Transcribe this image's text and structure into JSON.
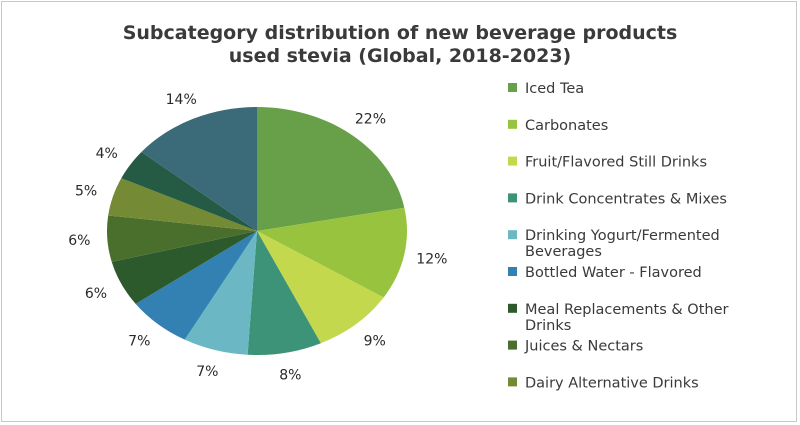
{
  "chart_data": {
    "type": "pie",
    "title": [
      "Subcategory distribution of new beverage products",
      "used stevia (Global, 2018-2023)"
    ],
    "slices": [
      {
        "label": "Iced Tea",
        "value": 22,
        "display": "22%",
        "color": "#67a048"
      },
      {
        "label": "Carbonates",
        "value": 12,
        "display": "12%",
        "color": "#98c33f"
      },
      {
        "label": "Fruit/Flavored Still Drinks",
        "value": 9,
        "display": "9%",
        "color": "#c4d84e"
      },
      {
        "label": "Drink Concentrates & Mixes",
        "value": 8,
        "display": "8%",
        "color": "#3c9377"
      },
      {
        "label": [
          "Drinking Yogurt/Fermented",
          "Beverages"
        ],
        "value": 7,
        "display": "7%",
        "color": "#6bb8c4"
      },
      {
        "label": "Bottled Water - Flavored",
        "value": 7,
        "display": "7%",
        "color": "#3381b3"
      },
      {
        "label": [
          "Meal Replacements & Other",
          "Drinks"
        ],
        "value": 6,
        "display": "6%",
        "color": "#2d5a2d"
      },
      {
        "label": "Juices & Nectars",
        "value": 6,
        "display": "6%",
        "color": "#4a6e2c"
      },
      {
        "label": "Dairy Alternative Drinks",
        "value": 5,
        "display": "5%",
        "color": "#758a34"
      },
      {
        "label": "",
        "value": 4,
        "display": "4%",
        "color": "#255a44"
      },
      {
        "label": "",
        "value": 14,
        "display": "14%",
        "color": "#3b6b78"
      }
    ],
    "legend_position": "right"
  }
}
